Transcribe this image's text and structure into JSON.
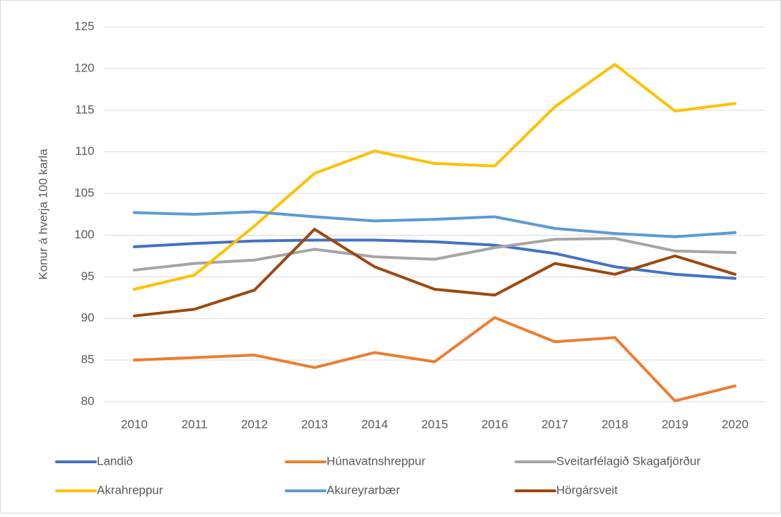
{
  "chart_data": {
    "type": "line",
    "y_label": "Konur á hverja 100 karla",
    "categories": [
      "2010",
      "2011",
      "2012",
      "2013",
      "2014",
      "2015",
      "2016",
      "2017",
      "2018",
      "2019",
      "2020"
    ],
    "series": [
      {
        "name": "Landið",
        "color": "#4472c4",
        "values": [
          98.6,
          99.0,
          99.3,
          99.4,
          99.4,
          99.2,
          98.8,
          97.8,
          96.2,
          95.3,
          94.8
        ]
      },
      {
        "name": "Húnavatnshreppur",
        "color": "#ed7d31",
        "values": [
          85.0,
          85.3,
          85.6,
          84.1,
          85.9,
          84.8,
          90.1,
          87.2,
          87.7,
          80.1,
          81.9
        ]
      },
      {
        "name": "Sveitarfélagið Skagafjörður",
        "color": "#a5a5a5",
        "values": [
          95.8,
          96.6,
          97.0,
          98.3,
          97.4,
          97.1,
          98.5,
          99.5,
          99.6,
          98.1,
          97.9
        ]
      },
      {
        "name": "Akrahreppur",
        "color": "#ffc000",
        "values": [
          93.5,
          95.2,
          101.1,
          107.4,
          110.1,
          108.6,
          108.3,
          115.4,
          120.5,
          114.9,
          115.8
        ]
      },
      {
        "name": "Akureyrarbær",
        "color": "#5b9bd5",
        "values": [
          102.7,
          102.5,
          102.8,
          102.2,
          101.7,
          101.9,
          102.2,
          100.8,
          100.2,
          99.8,
          100.3
        ]
      },
      {
        "name": "Hörgársveit",
        "color": "#9e480e",
        "values": [
          90.3,
          91.1,
          93.4,
          100.7,
          96.2,
          93.5,
          92.8,
          96.6,
          95.3,
          97.5,
          95.3
        ]
      }
    ],
    "ylim": [
      80,
      125
    ],
    "yticks": [
      80,
      85,
      90,
      95,
      100,
      105,
      110,
      115,
      120,
      125
    ],
    "grid": true,
    "legend": "bottom"
  }
}
